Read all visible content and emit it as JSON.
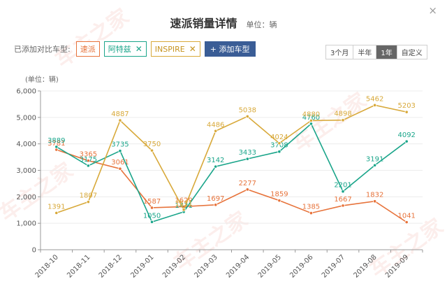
{
  "header": {
    "title": "速派销量详情",
    "unit": "单位：辆",
    "close_glyph": "×"
  },
  "compare": {
    "label": "已添加对比车型:",
    "chips": [
      {
        "name": "速派",
        "removable": false
      },
      {
        "name": "阿特兹",
        "removable": true
      },
      {
        "name": "INSPIRE",
        "removable": true
      }
    ],
    "remove_glyph": "✕",
    "add_label": "+ 添加车型"
  },
  "range": {
    "options": [
      "3个月",
      "半年",
      "1年",
      "自定义"
    ],
    "selected": "1年"
  },
  "watermark": "车主之家",
  "colors": {
    "速派": "#e7733b",
    "阿特兹": "#1aa58a",
    "INSPIRE": "#d8a93a"
  },
  "chart_data": {
    "type": "line",
    "ylabel": "(单位：辆)",
    "ylim": [
      0,
      6000
    ],
    "yticks": [
      "0",
      "1,000",
      "2,000",
      "3,000",
      "4,000",
      "5,000",
      "6,000"
    ],
    "categories": [
      "2018-10",
      "2018-11",
      "2018-12",
      "2019-01",
      "2019-02",
      "2019-03",
      "2019-04",
      "2019-05",
      "2019-06",
      "2019-07",
      "2019-08",
      "2019-09"
    ],
    "grid": true,
    "series": [
      {
        "name": "速派",
        "color": "#e7733b",
        "values": [
          3781,
          3365,
          3061,
          1587,
          1629,
          1697,
          2277,
          1859,
          1385,
          1667,
          1832,
          1041
        ]
      },
      {
        "name": "阿特兹",
        "color": "#1aa58a",
        "values": [
          3889,
          3175,
          3735,
          1050,
          1431,
          3142,
          3433,
          3708,
          4760,
          2201,
          3191,
          4092
        ]
      },
      {
        "name": "INSPIRE",
        "color": "#d8a93a",
        "values": [
          1391,
          1807,
          4887,
          3750,
          1511,
          4486,
          5038,
          4024,
          4880,
          4898,
          5462,
          5203
        ]
      }
    ]
  }
}
